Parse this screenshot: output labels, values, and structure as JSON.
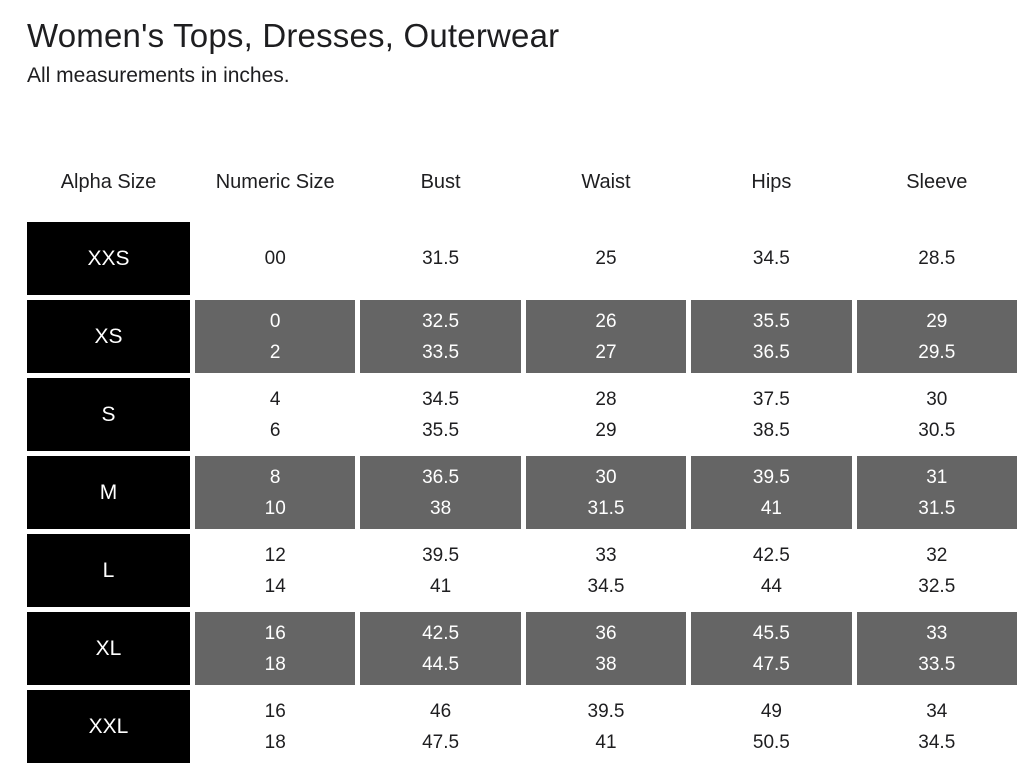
{
  "page": {
    "title": "Women's Tops, Dresses, Outerwear",
    "subtitle": "All measurements in inches."
  },
  "colors": {
    "cell_black": "#000000",
    "cell_gray": "#656565",
    "text_dark": "#1e1e20",
    "text_light": "#ffffff"
  },
  "table": {
    "columns": [
      "Alpha Size",
      "Numeric Size",
      "Bust",
      "Waist",
      "Hips",
      "Sleeve"
    ],
    "rows": [
      {
        "alpha": "XXS",
        "shaded": false,
        "values": [
          [
            "00"
          ],
          [
            "31.5"
          ],
          [
            "25"
          ],
          [
            "34.5"
          ],
          [
            "28.5"
          ]
        ]
      },
      {
        "alpha": "XS",
        "shaded": true,
        "values": [
          [
            "0",
            "2"
          ],
          [
            "32.5",
            "33.5"
          ],
          [
            "26",
            "27"
          ],
          [
            "35.5",
            "36.5"
          ],
          [
            "29",
            "29.5"
          ]
        ]
      },
      {
        "alpha": "S",
        "shaded": false,
        "values": [
          [
            "4",
            "6"
          ],
          [
            "34.5",
            "35.5"
          ],
          [
            "28",
            "29"
          ],
          [
            "37.5",
            "38.5"
          ],
          [
            "30",
            "30.5"
          ]
        ]
      },
      {
        "alpha": "M",
        "shaded": true,
        "values": [
          [
            "8",
            "10"
          ],
          [
            "36.5",
            "38"
          ],
          [
            "30",
            "31.5"
          ],
          [
            "39.5",
            "41"
          ],
          [
            "31",
            "31.5"
          ]
        ]
      },
      {
        "alpha": "L",
        "shaded": false,
        "values": [
          [
            "12",
            "14"
          ],
          [
            "39.5",
            "41"
          ],
          [
            "33",
            "34.5"
          ],
          [
            "42.5",
            "44"
          ],
          [
            "32",
            "32.5"
          ]
        ]
      },
      {
        "alpha": "XL",
        "shaded": true,
        "values": [
          [
            "16",
            "18"
          ],
          [
            "42.5",
            "44.5"
          ],
          [
            "36",
            "38"
          ],
          [
            "45.5",
            "47.5"
          ],
          [
            "33",
            "33.5"
          ]
        ]
      },
      {
        "alpha": "XXL",
        "shaded": false,
        "values": [
          [
            "16",
            "18"
          ],
          [
            "46",
            "47.5"
          ],
          [
            "39.5",
            "41"
          ],
          [
            "49",
            "50.5"
          ],
          [
            "34",
            "34.5"
          ]
        ]
      }
    ]
  }
}
